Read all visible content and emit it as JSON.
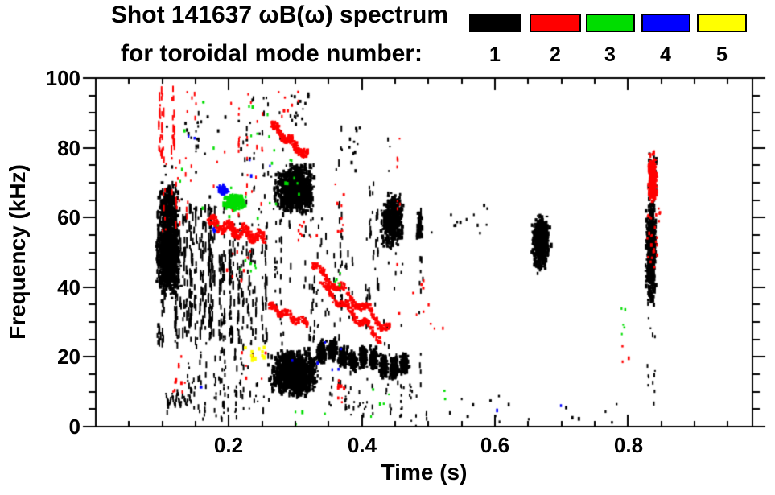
{
  "title": {
    "line1": "Shot 141637 ωB(ω) spectrum",
    "line2": "for toroidal mode number:"
  },
  "legend": {
    "modes": [
      {
        "label": "1",
        "color": "#000000"
      },
      {
        "label": "2",
        "color": "#ff0000"
      },
      {
        "label": "3",
        "color": "#00dd00"
      },
      {
        "label": "4",
        "color": "#0000ff"
      },
      {
        "label": "5",
        "color": "#ffff00"
      }
    ]
  },
  "axes": {
    "x": {
      "label": "Time (s)",
      "tick_labels": [
        "0.2",
        "0.4",
        "0.6",
        "0.8"
      ]
    },
    "y": {
      "label": "Frequency (kHz)",
      "tick_labels": [
        "100",
        "80",
        "60",
        "40",
        "20",
        "0"
      ]
    }
  },
  "chart_data": {
    "type": "scatter",
    "title": "Shot 141637 ωB(ω) spectrum for toroidal mode number: 1-5",
    "xlabel": "Time (s)",
    "ylabel": "Frequency (kHz)",
    "xlim": [
      0.0,
      0.987
    ],
    "ylim": [
      0,
      100
    ],
    "x_major_ticks": [
      0.2,
      0.4,
      0.6,
      0.8
    ],
    "x_minor_step": 0.05,
    "y_major_ticks": [
      0,
      20,
      40,
      60,
      80,
      100
    ],
    "y_minor_step": 5,
    "grid": false,
    "legend_position": "top-right",
    "series_colors": {
      "1": "#000000",
      "2": "#ff0000",
      "3": "#00dd00",
      "4": "#0000ff",
      "5": "#ffff00"
    },
    "features": [
      {
        "mode": 1,
        "kind": "vstreaks",
        "t": [
          0.086,
          0.178
        ],
        "f": [
          24,
          63
        ],
        "cols": 30,
        "dpc": 12,
        "dash": [
          3,
          14
        ]
      },
      {
        "mode": 1,
        "kind": "blob",
        "t": [
          0.087,
          0.128
        ],
        "f": [
          36,
          62
        ],
        "n": 900
      },
      {
        "mode": 1,
        "kind": "blob",
        "t": [
          0.09,
          0.124
        ],
        "f": [
          55,
          71
        ],
        "n": 260
      },
      {
        "mode": 1,
        "kind": "vstreaks",
        "t": [
          0.1,
          0.262
        ],
        "f": [
          2,
          26
        ],
        "cols": 34,
        "dpc": 4,
        "dash": [
          2,
          8
        ]
      },
      {
        "mode": 1,
        "kind": "squiggle",
        "t": [
          0.104,
          0.142
        ],
        "f": [
          6.5,
          9.5
        ],
        "n": 70
      },
      {
        "mode": 1,
        "kind": "vstreaks",
        "t": [
          0.178,
          0.262
        ],
        "f": [
          24,
          53
        ],
        "cols": 22,
        "dpc": 9,
        "dash": [
          3,
          12
        ]
      },
      {
        "mode": 1,
        "kind": "vstreaks",
        "t": [
          0.18,
          0.262
        ],
        "f": [
          53,
          63
        ],
        "cols": 8,
        "dpc": 3,
        "dash": [
          2,
          6
        ]
      },
      {
        "mode": 1,
        "kind": "vstreaks",
        "t": [
          0.215,
          0.315
        ],
        "f": [
          55,
          97
        ],
        "cols": 10,
        "dpc": 3,
        "dash": [
          2,
          7
        ]
      },
      {
        "mode": 1,
        "kind": "vstreaks",
        "t": [
          0.14,
          0.158
        ],
        "f": [
          76,
          92
        ],
        "cols": 2,
        "dpc": 4,
        "dash": [
          2,
          6
        ]
      },
      {
        "mode": 1,
        "kind": "dots",
        "t": [
          0.1,
          0.25
        ],
        "f": [
          63,
          92
        ],
        "n": 26
      },
      {
        "mode": 1,
        "kind": "blob",
        "t": [
          0.262,
          0.332
        ],
        "f": [
          60,
          76
        ],
        "n": 1050
      },
      {
        "mode": 1,
        "kind": "blob",
        "t": [
          0.257,
          0.338
        ],
        "f": [
          8,
          23
        ],
        "n": 1250
      },
      {
        "mode": 1,
        "kind": "vstreaks",
        "t": [
          0.26,
          0.34
        ],
        "f": [
          23,
          60
        ],
        "cols": 12,
        "dpc": 5,
        "dash": [
          2,
          9
        ]
      },
      {
        "mode": 1,
        "kind": "beads",
        "t": [
          0.338,
          0.462
        ],
        "f": [
          21.5,
          17
        ],
        "beads": 9,
        "rt": 0.009,
        "rf": 4.2,
        "n": 1000
      },
      {
        "mode": 1,
        "kind": "vstreaks",
        "t": [
          0.335,
          0.465
        ],
        "f": [
          3,
          14
        ],
        "cols": 14,
        "dpc": 3,
        "dash": [
          2,
          6
        ]
      },
      {
        "mode": 1,
        "kind": "vstreaks",
        "t": [
          0.34,
          0.41
        ],
        "f": [
          28,
          55
        ],
        "cols": 9,
        "dpc": 4,
        "dash": [
          2,
          9
        ]
      },
      {
        "mode": 1,
        "kind": "vstreaks",
        "t": [
          0.362,
          0.37
        ],
        "f": [
          8,
          88
        ],
        "cols": 2,
        "dpc": 14,
        "dash": [
          3,
          9
        ]
      },
      {
        "mode": 1,
        "kind": "vstreaks",
        "t": [
          0.4,
          0.425
        ],
        "f": [
          35,
          70
        ],
        "cols": 4,
        "dpc": 6,
        "dash": [
          3,
          12
        ]
      },
      {
        "mode": 1,
        "kind": "blob",
        "t": [
          0.425,
          0.465
        ],
        "f": [
          50,
          68
        ],
        "n": 430
      },
      {
        "mode": 1,
        "kind": "vstreaks",
        "t": [
          0.425,
          0.47
        ],
        "f": [
          15,
          50
        ],
        "cols": 6,
        "dpc": 3,
        "dash": [
          2,
          7
        ]
      },
      {
        "mode": 1,
        "kind": "vstreaks",
        "t": [
          0.437,
          0.443
        ],
        "f": [
          55,
          85
        ],
        "cols": 1,
        "dpc": 6,
        "dash": [
          2,
          6
        ]
      },
      {
        "mode": 1,
        "kind": "vstreaks",
        "t": [
          0.44,
          0.5
        ],
        "f": [
          0,
          12
        ],
        "cols": 9,
        "dpc": 3,
        "dash": [
          2,
          5
        ]
      },
      {
        "mode": 1,
        "kind": "vstreaks",
        "t": [
          0.481,
          0.489
        ],
        "f": [
          10,
          64
        ],
        "cols": 2,
        "dpc": 10,
        "dash": [
          3,
          9
        ]
      },
      {
        "mode": 1,
        "kind": "blob",
        "t": [
          0.479,
          0.491
        ],
        "f": [
          52,
          62
        ],
        "n": 70
      },
      {
        "mode": 1,
        "kind": "dots",
        "t": [
          0.5,
          0.62
        ],
        "f": [
          55,
          64
        ],
        "n": 13
      },
      {
        "mode": 1,
        "kind": "dots",
        "t": [
          0.5,
          0.65
        ],
        "f": [
          1,
          11
        ],
        "n": 10
      },
      {
        "mode": 1,
        "kind": "blob",
        "t": [
          0.652,
          0.682
        ],
        "f": [
          44,
          62
        ],
        "n": 560
      },
      {
        "mode": 1,
        "kind": "blob",
        "t": [
          0.824,
          0.842
        ],
        "f": [
          33,
          68
        ],
        "n": 520
      },
      {
        "mode": 1,
        "kind": "vstreaks",
        "t": [
          0.826,
          0.844
        ],
        "f": [
          5,
          33
        ],
        "cols": 5,
        "dpc": 3,
        "dash": [
          2,
          6
        ]
      },
      {
        "mode": 1,
        "kind": "dots",
        "t": [
          0.826,
          0.842
        ],
        "f": [
          68,
          79
        ],
        "n": 22
      },
      {
        "mode": 1,
        "kind": "dots",
        "t": [
          0.69,
          0.8
        ],
        "f": [
          0,
          9
        ],
        "n": 6
      },
      {
        "mode": 1,
        "kind": "dots",
        "t": [
          0.29,
          0.318
        ],
        "f": [
          86,
          98
        ],
        "n": 16
      },
      {
        "mode": 1,
        "kind": "dots",
        "t": [
          0.36,
          0.41
        ],
        "f": [
          72,
          88
        ],
        "n": 12
      },
      {
        "mode": 2,
        "kind": "vstreaks",
        "t": [
          0.094,
          0.118
        ],
        "f": [
          77,
          97
        ],
        "cols": 6,
        "dpc": 8,
        "dash": [
          3,
          12
        ]
      },
      {
        "mode": 2,
        "kind": "vstreaks",
        "t": [
          0.096,
          0.158
        ],
        "f": [
          55,
          77
        ],
        "cols": 8,
        "dpc": 4,
        "dash": [
          2,
          8
        ]
      },
      {
        "mode": 2,
        "kind": "vstreaks",
        "t": [
          0.12,
          0.27
        ],
        "f": [
          58,
          96
        ],
        "cols": 16,
        "dpc": 3,
        "dash": [
          2,
          6
        ]
      },
      {
        "mode": 2,
        "kind": "chirp",
        "t": [
          0.168,
          0.252
        ],
        "f": [
          58.5,
          54
        ],
        "th": 1.4,
        "w": 1.2,
        "wf": 22,
        "n": 300
      },
      {
        "mode": 2,
        "kind": "chirp",
        "t": [
          0.262,
          0.316
        ],
        "f": [
          86.5,
          77.5
        ],
        "th": 1.1,
        "w": 0.8,
        "wf": 14,
        "n": 210
      },
      {
        "mode": 2,
        "kind": "dots",
        "t": [
          0.27,
          0.335
        ],
        "f": [
          87,
          97
        ],
        "n": 10
      },
      {
        "mode": 2,
        "kind": "chirp",
        "t": [
          0.258,
          0.316
        ],
        "f": [
          34.5,
          29.5
        ],
        "th": 0.8,
        "w": 0.8,
        "wf": 16,
        "n": 120
      },
      {
        "mode": 2,
        "kind": "chirp",
        "t": [
          0.325,
          0.442
        ],
        "f": [
          46,
          27.5
        ],
        "th": 0.9,
        "w": 1.5,
        "wf": 20,
        "n": 250
      },
      {
        "mode": 2,
        "kind": "chirp",
        "t": [
          0.337,
          0.425
        ],
        "f": [
          40.5,
          25.5
        ],
        "th": 0.8,
        "w": 1.2,
        "wf": 18,
        "n": 190
      },
      {
        "mode": 2,
        "kind": "dots",
        "t": [
          0.358,
          0.372
        ],
        "f": [
          55,
          72
        ],
        "n": 9
      },
      {
        "mode": 2,
        "kind": "dots",
        "t": [
          0.358,
          0.372
        ],
        "f": [
          7,
          18
        ],
        "n": 9
      },
      {
        "mode": 2,
        "kind": "vstreaks",
        "t": [
          0.448,
          0.457
        ],
        "f": [
          60,
          86
        ],
        "cols": 2,
        "dpc": 5,
        "dash": [
          2,
          6
        ]
      },
      {
        "mode": 2,
        "kind": "dots",
        "t": [
          0.445,
          0.53
        ],
        "f": [
          28,
          52
        ],
        "n": 12
      },
      {
        "mode": 2,
        "kind": "dots",
        "t": [
          0.112,
          0.134
        ],
        "f": [
          10,
          14
        ],
        "n": 8
      },
      {
        "mode": 2,
        "kind": "dots",
        "t": [
          0.118,
          0.142
        ],
        "f": [
          15,
          21
        ],
        "n": 3
      },
      {
        "mode": 2,
        "kind": "dots",
        "t": [
          0.215,
          0.26
        ],
        "f": [
          11,
          22
        ],
        "n": 6
      },
      {
        "mode": 2,
        "kind": "blob",
        "t": [
          0.827,
          0.843
        ],
        "f": [
          63,
          80
        ],
        "n": 190
      },
      {
        "mode": 2,
        "kind": "dots",
        "t": [
          0.827,
          0.847
        ],
        "f": [
          45,
          63
        ],
        "n": 26
      },
      {
        "mode": 2,
        "kind": "dots",
        "t": [
          0.785,
          0.8
        ],
        "f": [
          18,
          24
        ],
        "n": 3
      },
      {
        "mode": 2,
        "kind": "dots",
        "t": [
          0.29,
          0.335
        ],
        "f": [
          53,
          60
        ],
        "n": 9
      },
      {
        "mode": 2,
        "kind": "dots",
        "t": [
          0.19,
          0.245
        ],
        "f": [
          42,
          52
        ],
        "n": 8
      },
      {
        "mode": 3,
        "kind": "blob",
        "t": [
          0.186,
          0.226
        ],
        "f": [
          62,
          67
        ],
        "n": 190
      },
      {
        "mode": 3,
        "kind": "dots",
        "t": [
          0.12,
          0.31
        ],
        "f": [
          55,
          96
        ],
        "n": 28
      },
      {
        "mode": 3,
        "kind": "dots",
        "t": [
          0.2,
          0.24
        ],
        "f": [
          44,
          50
        ],
        "n": 6
      },
      {
        "mode": 3,
        "kind": "dots",
        "t": [
          0.355,
          0.372
        ],
        "f": [
          41,
          46
        ],
        "n": 4
      },
      {
        "mode": 3,
        "kind": "dots",
        "t": [
          0.41,
          0.448
        ],
        "f": [
          3,
          13
        ],
        "n": 5
      },
      {
        "mode": 3,
        "kind": "dots",
        "t": [
          0.52,
          0.535
        ],
        "f": [
          8,
          11
        ],
        "n": 2
      },
      {
        "mode": 3,
        "kind": "dots",
        "t": [
          0.784,
          0.795
        ],
        "f": [
          26,
          36
        ],
        "n": 5
      },
      {
        "mode": 3,
        "kind": "dots",
        "t": [
          0.29,
          0.345
        ],
        "f": [
          1,
          5
        ],
        "n": 4
      },
      {
        "mode": 4,
        "kind": "blob",
        "t": [
          0.179,
          0.198
        ],
        "f": [
          66,
          69.5
        ],
        "n": 45
      },
      {
        "mode": 4,
        "kind": "dots",
        "t": [
          0.169,
          0.181
        ],
        "f": [
          55,
          58
        ],
        "n": 4
      },
      {
        "mode": 4,
        "kind": "dots",
        "t": [
          0.133,
          0.147
        ],
        "f": [
          82,
          86
        ],
        "n": 2
      },
      {
        "mode": 4,
        "kind": "dots",
        "t": [
          0.22,
          0.262
        ],
        "f": [
          72,
          77
        ],
        "n": 3
      },
      {
        "mode": 4,
        "kind": "dots",
        "t": [
          0.28,
          0.37
        ],
        "f": [
          13,
          26
        ],
        "n": 6
      },
      {
        "mode": 4,
        "kind": "dots",
        "t": [
          0.55,
          0.7
        ],
        "f": [
          5,
          8
        ],
        "n": 2
      },
      {
        "mode": 4,
        "kind": "dots",
        "t": [
          0.152,
          0.168
        ],
        "f": [
          11,
          14
        ],
        "n": 2
      },
      {
        "mode": 5,
        "kind": "dots",
        "t": [
          0.222,
          0.258
        ],
        "f": [
          19.5,
          23.5
        ],
        "n": 10,
        "sz": [
          3,
          4
        ]
      }
    ]
  }
}
